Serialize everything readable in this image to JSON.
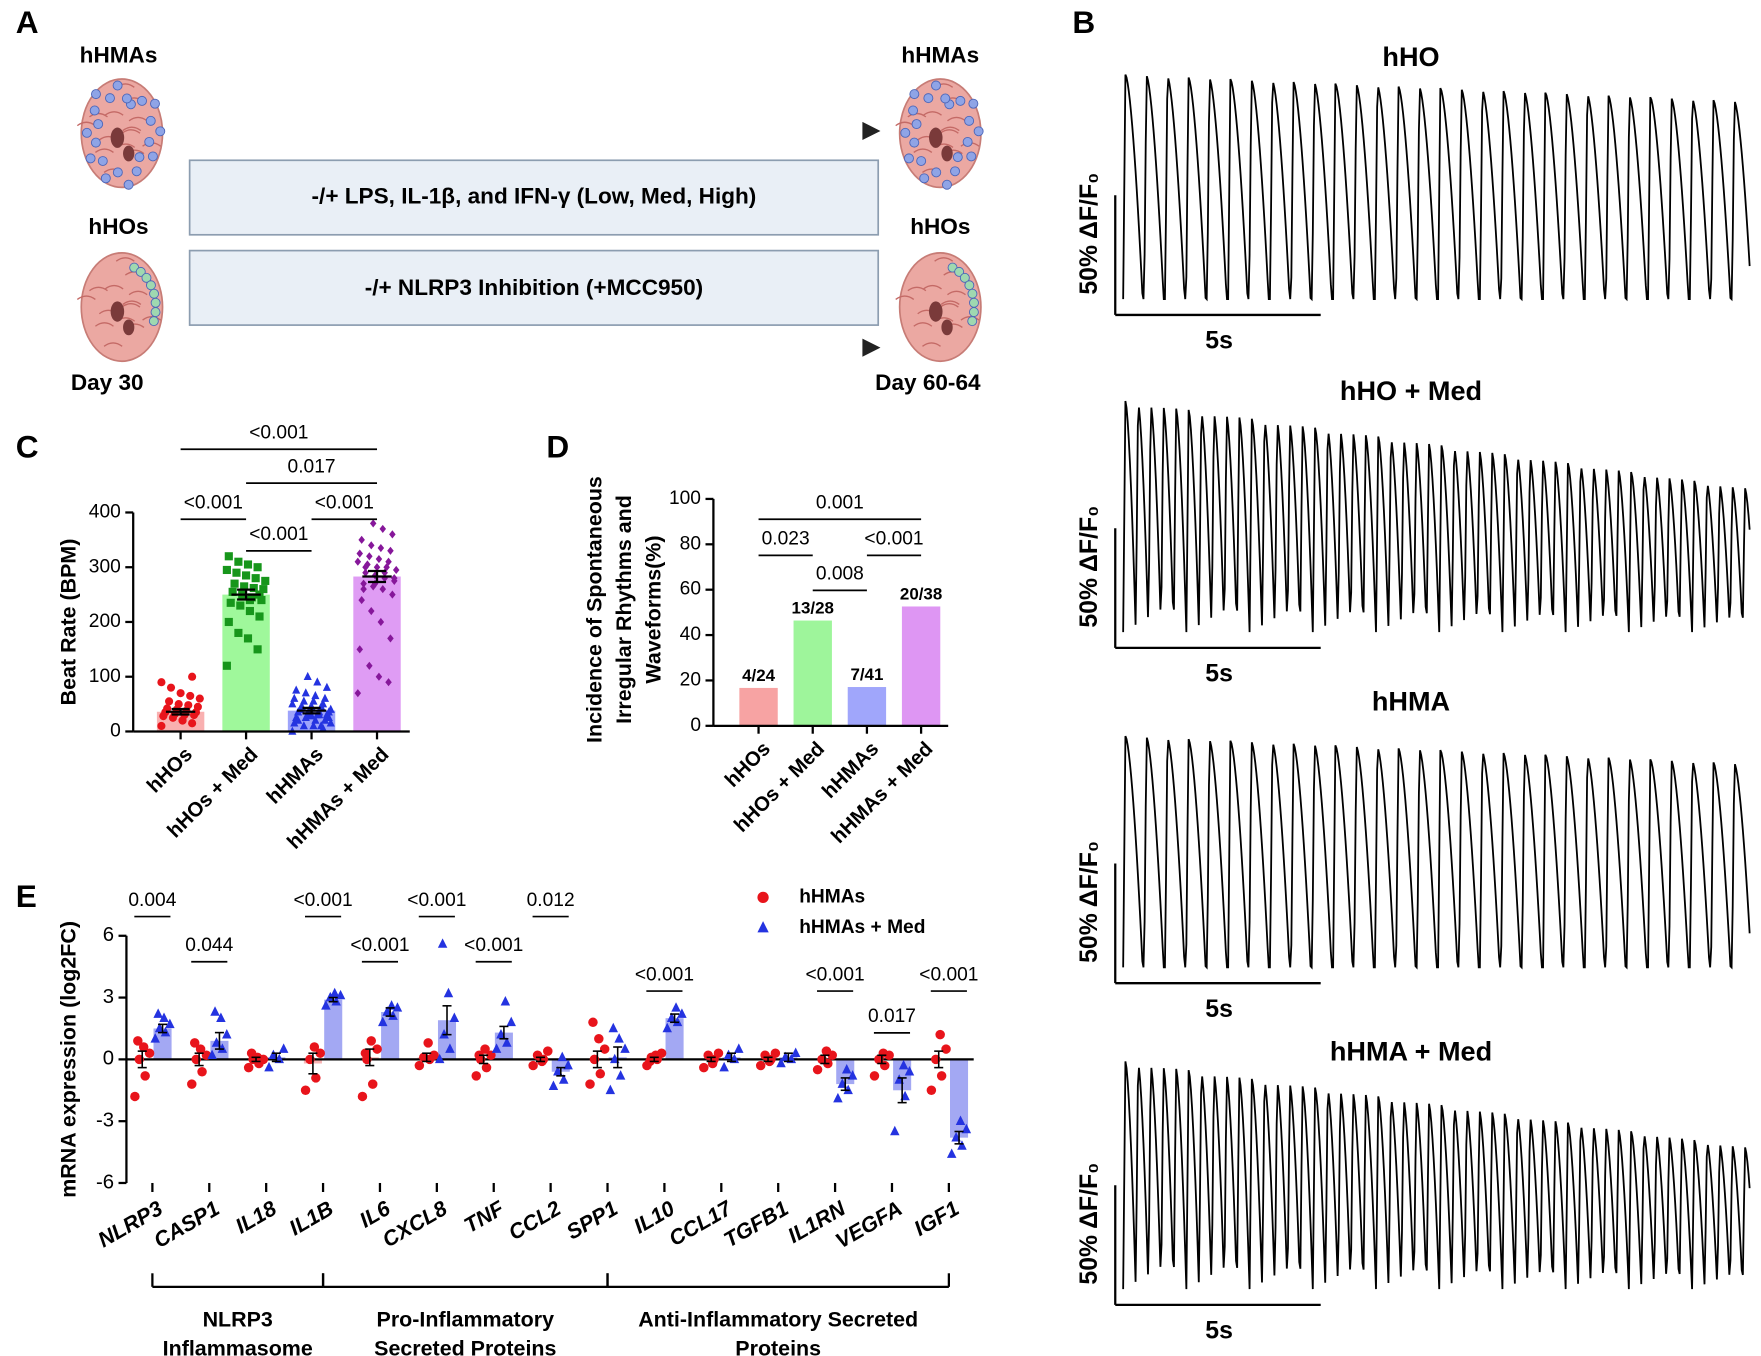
{
  "panel_a": {
    "label": "A",
    "left_top": "hHMAs",
    "right_top": "hHMAs",
    "left_bottom": "hHOs",
    "right_bottom": "hHOs",
    "start": "Day 30",
    "end": "Day 60-64",
    "treatments": [
      "-/+ LPS, IL-1β, and IFN-γ (Low, Med, High)",
      "-/+ NLRP3 Inhibition (+MCC950)"
    ]
  },
  "panel_b": {
    "label": "B",
    "traces": [
      {
        "title": "hHO",
        "y_scale": "50% ΔF/F₀",
        "x_scale": "5s"
      },
      {
        "title": "hHO + Med",
        "y_scale": "50% ΔF/F₀",
        "x_scale": "5s"
      },
      {
        "title": "hHMA",
        "y_scale": "50% ΔF/F₀",
        "x_scale": "5s"
      },
      {
        "title": "hHMA + Med",
        "y_scale": "50% ΔF/F₀",
        "x_scale": "5s"
      }
    ]
  },
  "chart_data": [
    {
      "panel": "C",
      "type": "bar_scatter",
      "ylabel": "Beat Rate (BPM)",
      "categories": [
        "hHOs",
        "hHOs + Med",
        "hHMAs",
        "hHMAs + Med"
      ],
      "values": [
        36,
        250,
        38,
        283
      ],
      "errors": [
        5,
        9,
        5,
        10
      ],
      "colors": [
        "#e8141b",
        "#17961b",
        "#2433e0",
        "#86179a"
      ],
      "bar_colors": [
        "#f9b0b0",
        "#9ff89b",
        "#9ea4fb",
        "#df9cf4"
      ],
      "markers": [
        "circle",
        "square",
        "triangle",
        "diamond"
      ],
      "points": [
        [
          10,
          15,
          20,
          25,
          28,
          30,
          30,
          32,
          35,
          35,
          38,
          40,
          42,
          45,
          48,
          50,
          55,
          60,
          65,
          70,
          80,
          90,
          100,
          20
        ],
        [
          120,
          150,
          170,
          180,
          200,
          210,
          220,
          230,
          235,
          240,
          245,
          250,
          255,
          260,
          262,
          265,
          270,
          275,
          280,
          285,
          290,
          295,
          300,
          305,
          310,
          320,
          250,
          240
        ],
        [
          0,
          5,
          10,
          10,
          15,
          20,
          20,
          25,
          25,
          30,
          30,
          30,
          35,
          35,
          35,
          40,
          40,
          40,
          45,
          45,
          45,
          50,
          50,
          55,
          55,
          60,
          60,
          65,
          70,
          75,
          80,
          90,
          100,
          20,
          25,
          30,
          35,
          40,
          15,
          10,
          28
        ],
        [
          70,
          90,
          100,
          120,
          150,
          170,
          200,
          220,
          240,
          250,
          260,
          265,
          270,
          275,
          280,
          285,
          290,
          295,
          300,
          300,
          305,
          310,
          310,
          315,
          320,
          325,
          330,
          335,
          340,
          350,
          360,
          370,
          380,
          260,
          280,
          290,
          270,
          300
        ]
      ],
      "ylim": [
        0,
        400
      ],
      "yticks": [
        0,
        100,
        200,
        300,
        400
      ],
      "annotations": [
        {
          "text": "<0.001",
          "between": [
            "hHOs",
            "hHMAs + Med"
          ]
        },
        {
          "text": "0.017",
          "between": [
            "hHOs + Med",
            "hHMAs + Med"
          ]
        },
        {
          "text": "<0.001",
          "between": [
            "hHOs",
            "hHOs + Med"
          ]
        },
        {
          "text": "<0.001",
          "between": [
            "hHMAs",
            "hHMAs + Med"
          ]
        },
        {
          "text": "<0.001",
          "between": [
            "hHOs + Med",
            "hHMAs"
          ]
        }
      ]
    },
    {
      "panel": "D",
      "type": "bar",
      "ylabel": [
        "Incidence of Spontaneous",
        "Irregular Rhythms and",
        "Waveforms(%)"
      ],
      "categories": [
        "hHOs",
        "hHOs + Med",
        "hHMAs",
        "hHMAs + Med"
      ],
      "values": [
        16.7,
        46.4,
        17.1,
        52.6
      ],
      "value_labels": [
        "4/24",
        "13/28",
        "7/41",
        "20/38"
      ],
      "colors": [
        "#f7a3a3",
        "#9ef59b",
        "#a0a6fb",
        "#de96f3"
      ],
      "ylim": [
        0,
        100
      ],
      "yticks": [
        0,
        20,
        40,
        60,
        80,
        100
      ],
      "annotations": [
        {
          "text": "0.001",
          "between": [
            "hHOs",
            "hHMAs + Med"
          ]
        },
        {
          "text": "0.023",
          "between": [
            "hHOs",
            "hHOs + Med"
          ]
        },
        {
          "text": "<0.001",
          "between": [
            "hHMAs",
            "hHMAs + Med"
          ]
        },
        {
          "text": "0.008",
          "between": [
            "hHOs + Med",
            "hHMAs"
          ]
        }
      ]
    },
    {
      "panel": "E",
      "type": "dot_bar",
      "ylabel": "mRNA expression (log2FC)",
      "categories": [
        "NLRP3",
        "CASP1",
        "IL18",
        "IL1B",
        "IL6",
        "CXCL8",
        "TNF",
        "CCL2",
        "SPP1",
        "IL10",
        "CCL17",
        "TGFB1",
        "IL1RN",
        "VEGFA",
        "IGF1"
      ],
      "ylim": [
        -6,
        6
      ],
      "yticks": [
        6,
        3,
        0,
        -3,
        -6
      ],
      "series": [
        {
          "name": "hHMAs",
          "color": "#e8141b",
          "bar_color": "#f7b4b4",
          "marker": "circle",
          "values": [
            0,
            0,
            0,
            -0.2,
            0.1,
            0.1,
            0,
            0,
            0,
            0,
            0,
            0,
            0,
            0,
            0
          ],
          "errors": [
            0.4,
            0.3,
            0.1,
            0.5,
            0.4,
            0.2,
            0.2,
            0.1,
            0.4,
            0.1,
            0.1,
            0.1,
            0.2,
            0.2,
            0.4
          ],
          "points": [
            [
              -1.8,
              -0.8,
              0,
              0.3,
              0.6,
              0.9
            ],
            [
              -1.2,
              -0.6,
              0,
              0.2,
              0.5,
              0.8
            ],
            [
              -0.4,
              -0.2,
              0,
              0,
              0.1,
              0.3
            ],
            [
              -1.5,
              -0.9,
              0,
              0.3,
              0.6
            ],
            [
              -1.8,
              -1.2,
              0,
              0.5,
              0.9,
              0.3
            ],
            [
              -0.3,
              0,
              0.1,
              0.2,
              0.8
            ],
            [
              -0.8,
              -0.4,
              0,
              0.2,
              0.5,
              0.2
            ],
            [
              -0.3,
              0,
              0.2,
              0.4,
              -0.1
            ],
            [
              -1.2,
              -0.7,
              0,
              0.5,
              1,
              1.8
            ],
            [
              -0.3,
              0,
              0.1,
              0.3,
              0.2,
              -0.1
            ],
            [
              -0.4,
              0,
              0.2,
              0.3,
              -0.2
            ],
            [
              -0.3,
              0,
              0.2,
              0.3,
              -0.1
            ],
            [
              -0.5,
              -0.2,
              0,
              0.2,
              0.4
            ],
            [
              -0.8,
              -0.3,
              0,
              0.2,
              0.3
            ],
            [
              -1.5,
              -0.8,
              0,
              0.5,
              1.2
            ]
          ]
        },
        {
          "name": "hHMAs + Med",
          "color": "#2433e0",
          "bar_color": "#a3a8f3",
          "marker": "triangle",
          "values": [
            1.5,
            0.9,
            0.1,
            2.9,
            2.3,
            1.9,
            1.3,
            -0.6,
            0.1,
            2.0,
            0.1,
            0.1,
            -1.2,
            -1.5,
            -3.8
          ],
          "errors": [
            0.2,
            0.4,
            0.2,
            0.1,
            0.2,
            0.7,
            0.3,
            0.2,
            0.5,
            0.2,
            0.2,
            0.2,
            0.3,
            0.6,
            0.3
          ],
          "points": [
            [
              1,
              1.3,
              1.5,
              1.7,
              2,
              2.2
            ],
            [
              0.2,
              0.5,
              0.8,
              1.2,
              2,
              2.3
            ],
            [
              -0.4,
              0,
              0.2,
              0.5
            ],
            [
              2.6,
              2.8,
              3,
              3.1,
              3.2
            ],
            [
              1.8,
              2.1,
              2.3,
              2.5,
              2.6
            ],
            [
              0,
              0.5,
              1.2,
              2,
              3.2,
              5.6
            ],
            [
              0.5,
              0.8,
              1.2,
              1.8,
              2.8
            ],
            [
              -1.3,
              -1,
              -0.6,
              -0.3,
              0.1
            ],
            [
              -1.5,
              -0.8,
              0,
              0.5,
              1,
              1.5
            ],
            [
              1.5,
              1.8,
              2,
              2.2,
              2.5
            ],
            [
              -0.4,
              0,
              0.2,
              0.5
            ],
            [
              -0.2,
              0,
              0.1,
              0.3
            ],
            [
              -1.9,
              -1.5,
              -1.2,
              -0.8,
              -0.5
            ],
            [
              -3.5,
              -1.8,
              -1,
              -0.6,
              -0.3
            ],
            [
              -4.6,
              -4.2,
              -3.8,
              -3.4,
              -3
            ]
          ]
        }
      ],
      "annotations": [
        {
          "text": "0.004",
          "category": "NLRP3"
        },
        {
          "text": "0.044",
          "category": "CASP1"
        },
        {
          "text": "<0.001",
          "category": "IL1B"
        },
        {
          "text": "<0.001",
          "category": "IL6"
        },
        {
          "text": "<0.001",
          "category": "CXCL8"
        },
        {
          "text": "<0.001",
          "category": "TNF"
        },
        {
          "text": "0.012",
          "category": "CCL2"
        },
        {
          "text": "<0.001",
          "category": "IL10"
        },
        {
          "text": "<0.001",
          "category": "IL1RN"
        },
        {
          "text": "0.017",
          "category": "VEGFA"
        },
        {
          "text": "<0.001",
          "category": "IGF1"
        }
      ],
      "groups": [
        {
          "label": [
            "NLRP3",
            "Inflammasome"
          ],
          "from": "NLRP3",
          "to": "IL1B"
        },
        {
          "label": [
            "Pro-Inflammatory",
            "Secreted Proteins"
          ],
          "from": "IL1B",
          "to": "SPP1"
        },
        {
          "label": [
            "Anti-Inflammatory Secreted",
            "Proteins"
          ],
          "from": "SPP1",
          "to": "IGF1"
        }
      ]
    }
  ]
}
